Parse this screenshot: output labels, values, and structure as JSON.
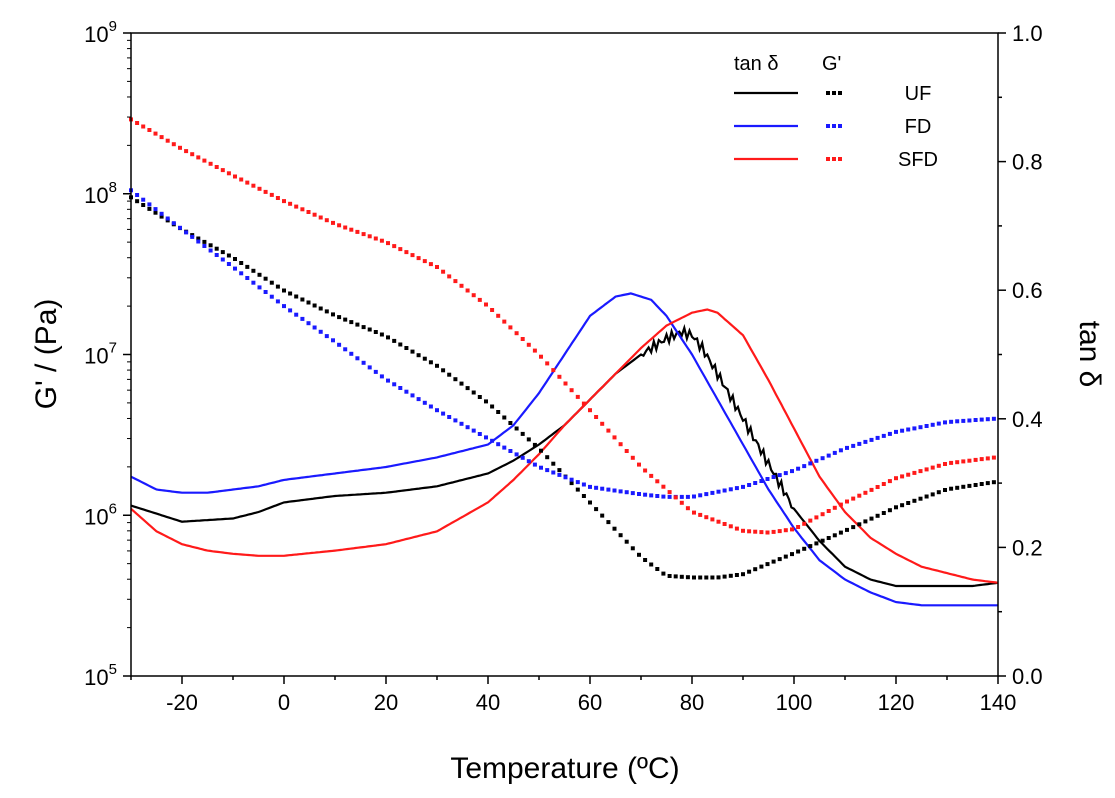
{
  "chart_data": {
    "type": "line",
    "title": "",
    "xlabel": "Temperature (ºC)",
    "ylabel_left": "G' / (Pa)",
    "ylabel_right": "tan δ",
    "xlim": [
      -30,
      140
    ],
    "ylim_left_log10": [
      5,
      9
    ],
    "ylim_right": [
      0.0,
      1.0
    ],
    "x_ticks": [
      "-20",
      "0",
      "20",
      "40",
      "60",
      "80",
      "100",
      "120",
      "140"
    ],
    "x_tick_values": [
      -20,
      0,
      20,
      40,
      60,
      80,
      100,
      120,
      140
    ],
    "y_left_ticks": [
      {
        "base": "10",
        "exp": "5",
        "value": 5
      },
      {
        "base": "10",
        "exp": "6",
        "value": 6
      },
      {
        "base": "10",
        "exp": "7",
        "value": 7
      },
      {
        "base": "10",
        "exp": "8",
        "value": 8
      },
      {
        "base": "10",
        "exp": "9",
        "value": 9
      }
    ],
    "y_right_ticks": [
      "0.0",
      "0.2",
      "0.4",
      "0.6",
      "0.8",
      "1.0"
    ],
    "y_right_tick_values": [
      0.0,
      0.2,
      0.4,
      0.6,
      0.8,
      1.0
    ],
    "legend": {
      "placement": "top-right",
      "header_solid": "tan δ",
      "header_dotted": "G'",
      "entries": [
        "UF",
        "FD",
        "SFD"
      ]
    },
    "colors": {
      "UF": "#000000",
      "FD": "#1a1aff",
      "SFD": "#ff1a1a"
    },
    "series": [
      {
        "name": "UF",
        "kind": "tan_delta",
        "axis": "right",
        "x": [
          -30,
          -20,
          -10,
          -5,
          0,
          10,
          20,
          30,
          40,
          45,
          50,
          55,
          60,
          65,
          70,
          75,
          78,
          80,
          82,
          85,
          90,
          95,
          100,
          105,
          110,
          115,
          120,
          125,
          130,
          135,
          140
        ],
        "values": [
          0.265,
          0.24,
          0.245,
          0.255,
          0.27,
          0.28,
          0.285,
          0.295,
          0.315,
          0.335,
          0.36,
          0.39,
          0.43,
          0.47,
          0.5,
          0.525,
          0.535,
          0.53,
          0.51,
          0.47,
          0.4,
          0.33,
          0.26,
          0.21,
          0.17,
          0.15,
          0.14,
          0.14,
          0.14,
          0.14,
          0.145
        ]
      },
      {
        "name": "FD",
        "kind": "tan_delta",
        "axis": "right",
        "x": [
          -30,
          -25,
          -20,
          -15,
          -10,
          -5,
          0,
          10,
          20,
          30,
          40,
          45,
          50,
          55,
          60,
          65,
          68,
          72,
          75,
          80,
          85,
          90,
          95,
          100,
          105,
          110,
          115,
          120,
          125,
          130,
          135,
          140
        ],
        "values": [
          0.31,
          0.29,
          0.285,
          0.285,
          0.29,
          0.295,
          0.305,
          0.315,
          0.325,
          0.34,
          0.36,
          0.39,
          0.44,
          0.5,
          0.56,
          0.59,
          0.595,
          0.585,
          0.56,
          0.5,
          0.43,
          0.36,
          0.29,
          0.23,
          0.18,
          0.15,
          0.13,
          0.115,
          0.11,
          0.11,
          0.11,
          0.11
        ]
      },
      {
        "name": "SFD",
        "kind": "tan_delta",
        "axis": "right",
        "x": [
          -30,
          -25,
          -20,
          -15,
          -10,
          -5,
          0,
          10,
          20,
          30,
          40,
          45,
          50,
          55,
          60,
          65,
          70,
          75,
          80,
          83,
          85,
          90,
          95,
          100,
          105,
          110,
          115,
          120,
          125,
          130,
          135,
          140
        ],
        "values": [
          0.26,
          0.225,
          0.205,
          0.195,
          0.19,
          0.187,
          0.187,
          0.195,
          0.205,
          0.225,
          0.27,
          0.305,
          0.345,
          0.39,
          0.43,
          0.47,
          0.51,
          0.545,
          0.565,
          0.57,
          0.565,
          0.53,
          0.46,
          0.385,
          0.31,
          0.255,
          0.215,
          0.19,
          0.17,
          0.16,
          0.15,
          0.145
        ]
      },
      {
        "name": "UF",
        "kind": "G_prime",
        "axis": "left",
        "unit": "Pa",
        "x": [
          -30,
          -20,
          -10,
          0,
          10,
          20,
          30,
          40,
          50,
          60,
          70,
          75,
          80,
          85,
          90,
          100,
          110,
          120,
          130,
          140
        ],
        "values": [
          95000000.0,
          60000000.0,
          40000000.0,
          25000000.0,
          17500000.0,
          13000000.0,
          8500000.0,
          5000000.0,
          2600000.0,
          1200000.0,
          550000.0,
          420000.0,
          410000.0,
          410000.0,
          430000.0,
          580000.0,
          800000.0,
          1120000.0,
          1450000.0,
          1620000.0
        ]
      },
      {
        "name": "FD",
        "kind": "G_prime",
        "axis": "left",
        "unit": "Pa",
        "x": [
          -30,
          -20,
          -10,
          0,
          10,
          20,
          30,
          40,
          50,
          60,
          70,
          75,
          80,
          90,
          100,
          110,
          120,
          130,
          140
        ],
        "values": [
          105000000.0,
          60000000.0,
          35000000.0,
          20000000.0,
          12000000.0,
          7000000.0,
          4500000.0,
          3000000.0,
          2000000.0,
          1500000.0,
          1350000.0,
          1300000.0,
          1300000.0,
          1500000.0,
          1900000.0,
          2600000.0,
          3300000.0,
          3800000.0,
          4000000.0
        ]
      },
      {
        "name": "SFD",
        "kind": "G_prime",
        "axis": "left",
        "unit": "Pa",
        "x": [
          -30,
          -20,
          -10,
          0,
          10,
          20,
          30,
          40,
          50,
          60,
          70,
          80,
          90,
          95,
          100,
          110,
          120,
          130,
          140
        ],
        "values": [
          290000000.0,
          190000000.0,
          130000000.0,
          90000000.0,
          65000000.0,
          50000000.0,
          35000000.0,
          20000000.0,
          10000000.0,
          4500000.0,
          2000000.0,
          1050000.0,
          800000.0,
          780000.0,
          820000.0,
          1200000.0,
          1700000.0,
          2100000.0,
          2300000.0
        ]
      }
    ]
  }
}
